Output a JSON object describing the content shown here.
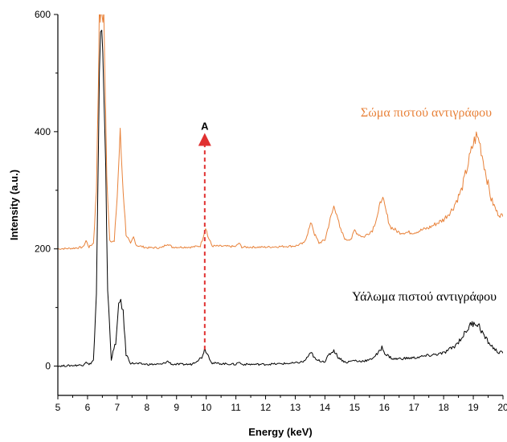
{
  "chart_data": {
    "type": "line",
    "xlabel": "Energy (keV)",
    "ylabel": "Intensity (a.u.)",
    "xlim": [
      5,
      20
    ],
    "ylim": [
      -50,
      600
    ],
    "x_ticks": [
      5,
      6,
      7,
      8,
      9,
      10,
      11,
      12,
      13,
      14,
      15,
      16,
      17,
      18,
      19,
      20
    ],
    "y_ticks": [
      0,
      200,
      400,
      600
    ],
    "grid": false,
    "series": [
      {
        "name": "Σώμα πιστού αντιγράφου",
        "color": "#e8823a",
        "points": [
          [
            5.0,
            200
          ],
          [
            5.5,
            201
          ],
          [
            5.85,
            203
          ],
          [
            5.95,
            214
          ],
          [
            6.05,
            203
          ],
          [
            6.2,
            210
          ],
          [
            6.3,
            300
          ],
          [
            6.4,
            600
          ],
          [
            6.55,
            600
          ],
          [
            6.65,
            320
          ],
          [
            6.75,
            215
          ],
          [
            6.9,
            212
          ],
          [
            7.0,
            290
          ],
          [
            7.1,
            397
          ],
          [
            7.2,
            300
          ],
          [
            7.3,
            225
          ],
          [
            7.45,
            208
          ],
          [
            7.55,
            220
          ],
          [
            7.65,
            206
          ],
          [
            8.0,
            202
          ],
          [
            8.5,
            202
          ],
          [
            8.7,
            209
          ],
          [
            8.85,
            203
          ],
          [
            9.5,
            203
          ],
          [
            9.8,
            205
          ],
          [
            9.92,
            225
          ],
          [
            9.98,
            238
          ],
          [
            10.05,
            222
          ],
          [
            10.2,
            205
          ],
          [
            11.0,
            204
          ],
          [
            11.1,
            210
          ],
          [
            11.2,
            203
          ],
          [
            12.0,
            203
          ],
          [
            12.5,
            204
          ],
          [
            13.0,
            205
          ],
          [
            13.3,
            210
          ],
          [
            13.45,
            232
          ],
          [
            13.55,
            245
          ],
          [
            13.65,
            225
          ],
          [
            13.8,
            210
          ],
          [
            14.0,
            215
          ],
          [
            14.15,
            245
          ],
          [
            14.3,
            272
          ],
          [
            14.4,
            262
          ],
          [
            14.5,
            235
          ],
          [
            14.7,
            215
          ],
          [
            14.9,
            218
          ],
          [
            15.0,
            232
          ],
          [
            15.1,
            226
          ],
          [
            15.3,
            220
          ],
          [
            15.6,
            232
          ],
          [
            15.8,
            262
          ],
          [
            15.92,
            290
          ],
          [
            16.05,
            265
          ],
          [
            16.2,
            238
          ],
          [
            16.5,
            228
          ],
          [
            17.0,
            228
          ],
          [
            17.5,
            236
          ],
          [
            18.0,
            250
          ],
          [
            18.3,
            268
          ],
          [
            18.6,
            300
          ],
          [
            18.8,
            340
          ],
          [
            19.0,
            380
          ],
          [
            19.1,
            392
          ],
          [
            19.2,
            385
          ],
          [
            19.4,
            335
          ],
          [
            19.6,
            285
          ],
          [
            19.8,
            262
          ],
          [
            20.0,
            255
          ]
        ]
      },
      {
        "name": "Υάλωμα πιστού αντιγράφου",
        "color": "#000000",
        "points": [
          [
            5.0,
            0
          ],
          [
            5.5,
            1
          ],
          [
            5.85,
            2
          ],
          [
            5.95,
            8
          ],
          [
            6.05,
            2
          ],
          [
            6.2,
            10
          ],
          [
            6.3,
            120
          ],
          [
            6.4,
            480
          ],
          [
            6.48,
            600
          ],
          [
            6.58,
            420
          ],
          [
            6.68,
            130
          ],
          [
            6.8,
            12
          ],
          [
            6.95,
            40
          ],
          [
            7.05,
            100
          ],
          [
            7.12,
            115
          ],
          [
            7.2,
            90
          ],
          [
            7.3,
            20
          ],
          [
            7.45,
            5
          ],
          [
            8.0,
            3
          ],
          [
            8.5,
            3
          ],
          [
            8.7,
            8
          ],
          [
            8.85,
            3
          ],
          [
            9.5,
            3
          ],
          [
            9.85,
            15
          ],
          [
            9.95,
            30
          ],
          [
            10.05,
            20
          ],
          [
            10.2,
            5
          ],
          [
            11.0,
            3
          ],
          [
            11.1,
            7
          ],
          [
            11.2,
            3
          ],
          [
            12.0,
            3
          ],
          [
            12.5,
            4
          ],
          [
            13.0,
            5
          ],
          [
            13.3,
            8
          ],
          [
            13.45,
            18
          ],
          [
            13.55,
            22
          ],
          [
            13.7,
            10
          ],
          [
            14.0,
            8
          ],
          [
            14.15,
            20
          ],
          [
            14.3,
            27
          ],
          [
            14.45,
            15
          ],
          [
            14.7,
            6
          ],
          [
            15.0,
            10
          ],
          [
            15.1,
            8
          ],
          [
            15.5,
            10
          ],
          [
            15.8,
            22
          ],
          [
            15.92,
            32
          ],
          [
            16.05,
            20
          ],
          [
            16.3,
            12
          ],
          [
            17.0,
            14
          ],
          [
            17.5,
            18
          ],
          [
            18.0,
            22
          ],
          [
            18.4,
            35
          ],
          [
            18.7,
            55
          ],
          [
            18.9,
            70
          ],
          [
            19.05,
            75
          ],
          [
            19.2,
            68
          ],
          [
            19.4,
            48
          ],
          [
            19.6,
            35
          ],
          [
            19.8,
            25
          ],
          [
            20.0,
            22
          ]
        ]
      }
    ],
    "annotation": {
      "label": "A",
      "x": 9.95,
      "y_from": 28,
      "y_to": 395,
      "color": "#e03030"
    }
  }
}
